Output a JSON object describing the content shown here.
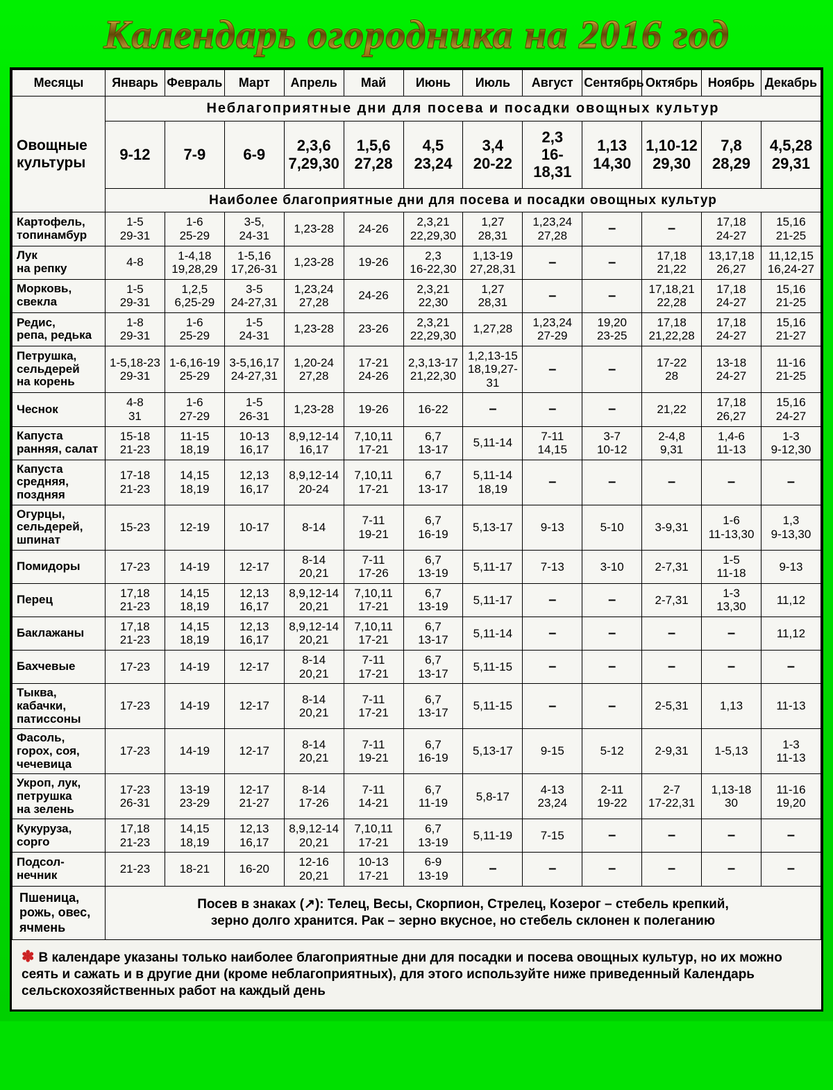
{
  "colors": {
    "outer_bg_top": "#00f000",
    "outer_bg_bottom": "#00d000",
    "sheet_bg": "#f3f3ee",
    "border": "#000000",
    "title_gold_light": "#d4af37",
    "title_gold_dark": "#b8860b",
    "star": "#cc2222"
  },
  "title": "Календарь огородника на 2016 год",
  "header": {
    "months_label": "Месяцы",
    "months": [
      "Январь",
      "Февраль",
      "Март",
      "Апрель",
      "Май",
      "Июнь",
      "Июль",
      "Август",
      "Сентябрь",
      "Октябрь",
      "Ноябрь",
      "Декабрь"
    ]
  },
  "crops_label": "Овощные культуры",
  "band_bad": "Неблагоприятные дни для посева и посадки овощных культур",
  "band_good": "Наиболее благоприятные дни для посева и посадки овощных культур",
  "bad_days": [
    "9-12",
    "7-9",
    "6-9",
    "2,3,6\n7,29,30",
    "1,5,6\n27,28",
    "4,5\n23,24",
    "3,4\n20-22",
    "2,3\n16-18,31",
    "1,13\n14,30",
    "1,10-12\n29,30",
    "7,8\n28,29",
    "4,5,28\n29,31"
  ],
  "rows": [
    {
      "label": "Картофель,\nтопинамбур",
      "cells": [
        "1-5\n29-31",
        "1-6\n25-29",
        "3-5,\n24-31",
        "1,23-28",
        "24-26",
        "2,3,21\n22,29,30",
        "1,27\n28,31",
        "1,23,24\n27,28",
        "–",
        "–",
        "17,18\n24-27",
        "15,16\n21-25"
      ]
    },
    {
      "label": "Лук\nна репку",
      "cells": [
        "4-8",
        "1-4,18\n19,28,29",
        "1-5,16\n17,26-31",
        "1,23-28",
        "19-26",
        "2,3\n16-22,30",
        "1,13-19\n27,28,31",
        "–",
        "–",
        "17,18\n21,22",
        "13,17,18\n26,27",
        "11,12,15\n16,24-27"
      ]
    },
    {
      "label": "Морковь,\nсвекла",
      "cells": [
        "1-5\n29-31",
        "1,2,5\n6,25-29",
        "3-5\n24-27,31",
        "1,23,24\n27,28",
        "24-26",
        "2,3,21\n22,30",
        "1,27\n28,31",
        "–",
        "–",
        "17,18,21\n22,28",
        "17,18\n24-27",
        "15,16\n21-25"
      ]
    },
    {
      "label": "Редис,\nрепа, редька",
      "cells": [
        "1-8\n29-31",
        "1-6\n25-29",
        "1-5\n24-31",
        "1,23-28",
        "23-26",
        "2,3,21\n22,29,30",
        "1,27,28",
        "1,23,24\n27-29",
        "19,20\n23-25",
        "17,18\n21,22,28",
        "17,18\n24-27",
        "15,16\n21-27"
      ]
    },
    {
      "label": "Петрушка,\nсельдерей\nна корень",
      "cells": [
        "1-5,18-23\n29-31",
        "1-6,16-19\n25-29",
        "3-5,16,17\n24-27,31",
        "1,20-24\n27,28",
        "17-21\n24-26",
        "2,3,13-17\n21,22,30",
        "1,2,13-15\n18,19,27-31",
        "–",
        "–",
        "17-22\n28",
        "13-18\n24-27",
        "11-16\n21-25"
      ]
    },
    {
      "label": "Чеснок",
      "cells": [
        "4-8\n31",
        "1-6\n27-29",
        "1-5\n26-31",
        "1,23-28",
        "19-26",
        "16-22",
        "–",
        "–",
        "–",
        "21,22",
        "17,18\n26,27",
        "15,16\n24-27"
      ]
    },
    {
      "label": "Капуста\nранняя, салат",
      "cells": [
        "15-18\n21-23",
        "11-15\n18,19",
        "10-13\n16,17",
        "8,9,12-14\n16,17",
        "7,10,11\n17-21",
        "6,7\n13-17",
        "5,11-14",
        "7-11\n14,15",
        "3-7\n10-12",
        "2-4,8\n9,31",
        "1,4-6\n11-13",
        "1-3\n9-12,30"
      ]
    },
    {
      "label": "Капуста\nсредняя, поздняя",
      "cells": [
        "17-18\n21-23",
        "14,15\n18,19",
        "12,13\n16,17",
        "8,9,12-14\n20-24",
        "7,10,11\n17-21",
        "6,7\n13-17",
        "5,11-14\n18,19",
        "–",
        "–",
        "–",
        "–",
        "–"
      ]
    },
    {
      "label": "Огурцы,\nсельдерей,\nшпинат",
      "cells": [
        "15-23",
        "12-19",
        "10-17",
        "8-14",
        "7-11\n19-21",
        "6,7\n16-19",
        "5,13-17",
        "9-13",
        "5-10",
        "3-9,31",
        "1-6\n11-13,30",
        "1,3\n9-13,30"
      ]
    },
    {
      "label": "Помидоры",
      "cells": [
        "17-23",
        "14-19",
        "12-17",
        "8-14\n20,21",
        "7-11\n17-26",
        "6,7\n13-19",
        "5,11-17",
        "7-13",
        "3-10",
        "2-7,31",
        "1-5\n11-18",
        "9-13"
      ]
    },
    {
      "label": "Перец",
      "cells": [
        "17,18\n21-23",
        "14,15\n18,19",
        "12,13\n16,17",
        "8,9,12-14\n20,21",
        "7,10,11\n17-21",
        "6,7\n13-19",
        "5,11-17",
        "–",
        "–",
        "2-7,31",
        "1-3\n13,30",
        "11,12"
      ]
    },
    {
      "label": "Баклажаны",
      "cells": [
        "17,18\n21-23",
        "14,15\n18,19",
        "12,13\n16,17",
        "8,9,12-14\n20,21",
        "7,10,11\n17-21",
        "6,7\n13-17",
        "5,11-14",
        "–",
        "–",
        "–",
        "–",
        "11,12"
      ]
    },
    {
      "label": "Бахчевые",
      "cells": [
        "17-23",
        "14-19",
        "12-17",
        "8-14\n20,21",
        "7-11\n17-21",
        "6,7\n13-17",
        "5,11-15",
        "–",
        "–",
        "–",
        "–",
        "–"
      ]
    },
    {
      "label": "Тыква,\nкабачки,\nпатиссоны",
      "cells": [
        "17-23",
        "14-19",
        "12-17",
        "8-14\n20,21",
        "7-11\n17-21",
        "6,7\n13-17",
        "5,11-15",
        "–",
        "–",
        "2-5,31",
        "1,13",
        "11-13"
      ]
    },
    {
      "label": "Фасоль,\nгорох, соя,\nчечевица",
      "cells": [
        "17-23",
        "14-19",
        "12-17",
        "8-14\n20,21",
        "7-11\n19-21",
        "6,7\n16-19",
        "5,13-17",
        "9-15",
        "5-12",
        "2-9,31",
        "1-5,13",
        "1-3\n11-13"
      ]
    },
    {
      "label": "Укроп, лук,\nпетрушка\nна зелень",
      "cells": [
        "17-23\n26-31",
        "13-19\n23-29",
        "12-17\n21-27",
        "8-14\n17-26",
        "7-11\n14-21",
        "6,7\n11-19",
        "5,8-17",
        "4-13\n23,24",
        "2-11\n19-22",
        "2-7\n17-22,31",
        "1,13-18\n30",
        "11-16\n19,20"
      ]
    },
    {
      "label": "Кукуруза,\nсорго",
      "cells": [
        "17,18\n21-23",
        "14,15\n18,19",
        "12,13\n16,17",
        "8,9,12-14\n20,21",
        "7,10,11\n17-21",
        "6,7\n13-19",
        "5,11-19",
        "7-15",
        "–",
        "–",
        "–",
        "–"
      ]
    },
    {
      "label": "Подсол-\nнечник",
      "cells": [
        "21-23",
        "18-21",
        "16-20",
        "12-16\n20,21",
        "10-13\n17-21",
        "6-9\n13-19",
        "–",
        "–",
        "–",
        "–",
        "–",
        "–"
      ]
    }
  ],
  "wheat_row": {
    "label": "Пшеница,\nрожь, овес,\nячмень",
    "note": "Посев в знаках (↗): Телец, Весы, Скорпион, Стрелец, Козерог – стебель крепкий,\nзерно долго хранится. Рак – зерно вкусное, но стебель склонен к полеганию"
  },
  "bottom_note": "В календаре указаны только наиболее благоприятные дни для посадки и посева овощных культур,  но их можно сеять и сажать и в другие дни  (кроме неблагоприятных),  для этого используйте ниже приведенный Календарь сельскохозяйственных работ на каждый день"
}
